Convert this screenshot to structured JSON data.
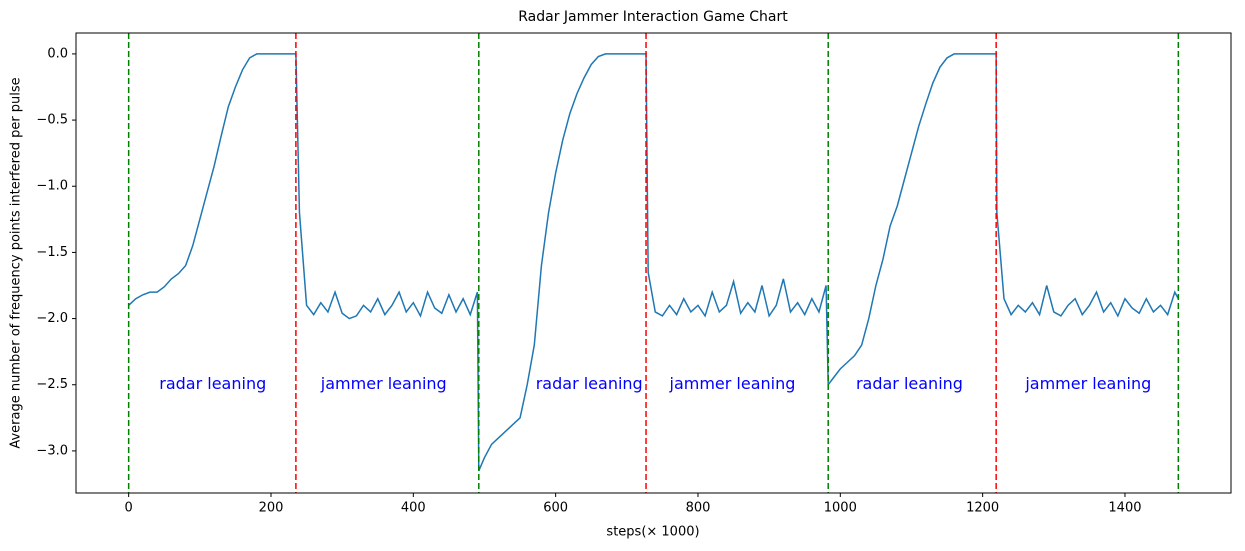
{
  "chart_data": {
    "type": "line",
    "title": "Radar Jammer Interaction Game Chart",
    "xlabel": "steps(× 1000)",
    "ylabel": "Average number of frequency points interfered per pulse",
    "x": [
      0,
      10,
      20,
      30,
      40,
      50,
      60,
      70,
      80,
      90,
      100,
      110,
      120,
      130,
      140,
      150,
      160,
      170,
      180,
      190,
      200,
      210,
      220,
      230,
      235,
      240,
      250,
      260,
      270,
      280,
      290,
      300,
      310,
      320,
      330,
      340,
      350,
      360,
      370,
      380,
      390,
      400,
      410,
      420,
      430,
      440,
      450,
      460,
      470,
      480,
      490,
      492,
      500,
      510,
      520,
      530,
      540,
      550,
      560,
      570,
      580,
      590,
      600,
      610,
      620,
      630,
      640,
      650,
      660,
      670,
      680,
      690,
      700,
      710,
      720,
      727,
      730,
      740,
      750,
      760,
      770,
      780,
      790,
      800,
      810,
      820,
      830,
      840,
      850,
      860,
      870,
      880,
      890,
      900,
      910,
      920,
      930,
      940,
      950,
      960,
      970,
      980,
      983,
      990,
      1000,
      1010,
      1020,
      1030,
      1040,
      1050,
      1060,
      1070,
      1080,
      1090,
      1100,
      1110,
      1120,
      1130,
      1140,
      1150,
      1160,
      1170,
      1180,
      1190,
      1200,
      1210,
      1219,
      1220,
      1230,
      1240,
      1250,
      1260,
      1270,
      1280,
      1290,
      1300,
      1310,
      1320,
      1330,
      1340,
      1350,
      1360,
      1370,
      1380,
      1390,
      1400,
      1410,
      1420,
      1430,
      1440,
      1450,
      1460,
      1470,
      1475
    ],
    "series": [
      {
        "color": "#1f77b4",
        "values": [
          -1.9,
          -1.85,
          -1.82,
          -1.8,
          -1.8,
          -1.76,
          -1.7,
          -1.66,
          -1.6,
          -1.45,
          -1.25,
          -1.05,
          -0.85,
          -0.62,
          -0.4,
          -0.25,
          -0.12,
          -0.03,
          0,
          0,
          0,
          0,
          0,
          0,
          0,
          -1.2,
          -1.9,
          -1.97,
          -1.88,
          -1.95,
          -1.8,
          -1.96,
          -2.0,
          -1.98,
          -1.9,
          -1.95,
          -1.85,
          -1.97,
          -1.9,
          -1.8,
          -1.95,
          -1.88,
          -1.98,
          -1.8,
          -1.92,
          -1.96,
          -1.82,
          -1.95,
          -1.85,
          -1.97,
          -1.8,
          -3.15,
          -3.05,
          -2.95,
          -2.9,
          -2.85,
          -2.8,
          -2.75,
          -2.5,
          -2.2,
          -1.6,
          -1.2,
          -0.9,
          -0.65,
          -0.45,
          -0.3,
          -0.18,
          -0.08,
          -0.02,
          0,
          0,
          0,
          0,
          0,
          0,
          0,
          -1.65,
          -1.95,
          -1.98,
          -1.9,
          -1.97,
          -1.85,
          -1.95,
          -1.9,
          -1.98,
          -1.8,
          -1.95,
          -1.9,
          -1.72,
          -1.96,
          -1.88,
          -1.95,
          -1.75,
          -1.98,
          -1.9,
          -1.7,
          -1.95,
          -1.88,
          -1.97,
          -1.85,
          -1.95,
          -1.75,
          -2.5,
          -2.45,
          -2.38,
          -2.33,
          -2.28,
          -2.2,
          -2.0,
          -1.75,
          -1.55,
          -1.3,
          -1.15,
          -0.95,
          -0.75,
          -0.55,
          -0.38,
          -0.22,
          -0.1,
          -0.03,
          0,
          0,
          0,
          0,
          0,
          0,
          0,
          -1.2,
          -1.85,
          -1.97,
          -1.9,
          -1.95,
          -1.88,
          -1.97,
          -1.75,
          -1.95,
          -1.98,
          -1.9,
          -1.85,
          -1.97,
          -1.9,
          -1.8,
          -1.95,
          -1.88,
          -1.98,
          -1.85,
          -1.92,
          -1.96,
          -1.85,
          -1.95,
          -1.9,
          -1.97,
          -1.8,
          -1.85
        ]
      }
    ],
    "xlim": [
      -74,
      1549
    ],
    "ylim": [
      -3.318,
      0.158
    ],
    "xticks": [
      0,
      200,
      400,
      600,
      800,
      1000,
      1200,
      1400
    ],
    "yticks": [
      {
        "value": 0,
        "label": "0.0"
      },
      {
        "value": -0.5,
        "label": "−0.5"
      },
      {
        "value": -1,
        "label": "−1.0"
      },
      {
        "value": -1.5,
        "label": "−1.5"
      },
      {
        "value": -2,
        "label": "−2.0"
      },
      {
        "value": -2.5,
        "label": "−2.5"
      },
      {
        "value": -3,
        "label": "−3.0"
      }
    ],
    "vlines": [
      {
        "x": 0,
        "color": "green"
      },
      {
        "x": 235,
        "color": "red"
      },
      {
        "x": 492,
        "color": "green"
      },
      {
        "x": 727,
        "color": "red"
      },
      {
        "x": 983,
        "color": "green"
      },
      {
        "x": 1219,
        "color": "red"
      },
      {
        "x": 1475,
        "color": "green"
      }
    ],
    "annotations": [
      {
        "text": "radar leaning",
        "x": 43,
        "y": -2.5,
        "color": "blue"
      },
      {
        "text": "jammer leaning",
        "x": 270,
        "y": -2.5,
        "color": "blue"
      },
      {
        "text": "radar leaning",
        "x": 572,
        "y": -2.5,
        "color": "blue"
      },
      {
        "text": "jammer leaning",
        "x": 760,
        "y": -2.5,
        "color": "blue"
      },
      {
        "text": "radar leaning",
        "x": 1022,
        "y": -2.5,
        "color": "blue"
      },
      {
        "text": "jammer leaning",
        "x": 1260,
        "y": -2.5,
        "color": "blue"
      }
    ]
  }
}
